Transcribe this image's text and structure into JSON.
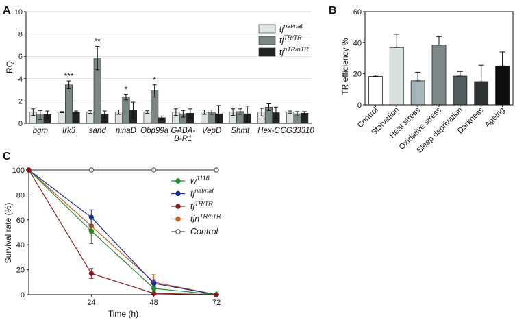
{
  "colors": {
    "nat": "#dde3e0",
    "tr": "#7b8785",
    "ntr": "#222424",
    "line_w1118": "#1f8a2e",
    "line_nat": "#1b2a9c",
    "line_tr": "#8b1a1a",
    "line_ntr": "#c4581e",
    "line_control": "#555555"
  },
  "chart_data": [
    {
      "id": "A",
      "panel_label": "A",
      "type": "bar",
      "ylabel": "RQ",
      "xlabel": "",
      "ylim": [
        0,
        10
      ],
      "yticks": [
        0,
        2,
        4,
        6,
        8,
        10
      ],
      "categories": [
        "bgm",
        "Irk3",
        "sand",
        "ninaD",
        "Obp99a",
        "GABA-B-R1",
        "VepD",
        "Shmt",
        "Hex-C",
        "CG33310"
      ],
      "category_lines": [
        [
          "bgm"
        ],
        [
          "Irk3"
        ],
        [
          "sand"
        ],
        [
          "ninaD"
        ],
        [
          "Obp99a"
        ],
        [
          "GABA-",
          "B-R1"
        ],
        [
          "VepD"
        ],
        [
          "Shmt"
        ],
        [
          "Hex-C"
        ],
        [
          "CG33310"
        ]
      ],
      "series": [
        {
          "key": "nat",
          "name": "tj",
          "sup": "nat/nat",
          "values": [
            1.0,
            1.0,
            1.0,
            1.0,
            1.0,
            1.0,
            1.0,
            1.0,
            1.0,
            1.0
          ],
          "err": [
            0.3,
            0.05,
            0.12,
            0.2,
            0.12,
            0.3,
            0.2,
            0.3,
            0.35,
            0.1
          ]
        },
        {
          "key": "tr",
          "name": "tj",
          "sup": "TR/TR",
          "values": [
            0.75,
            3.45,
            5.85,
            2.35,
            2.9,
            0.85,
            1.0,
            1.05,
            1.45,
            0.85
          ],
          "err": [
            0.4,
            0.35,
            1.05,
            0.25,
            0.55,
            0.3,
            0.2,
            0.25,
            0.3,
            0.2
          ]
        },
        {
          "key": "ntr",
          "name": "tj",
          "sup": "nTR/nTR",
          "values": [
            0.8,
            1.0,
            0.8,
            1.2,
            0.5,
            0.9,
            0.85,
            0.85,
            0.95,
            0.9
          ],
          "err": [
            0.3,
            0.1,
            0.3,
            0.7,
            0.15,
            0.4,
            0.75,
            0.7,
            0.5,
            0.15
          ]
        }
      ],
      "significance": [
        {
          "category": "Irk3",
          "series": "tr",
          "label": "***"
        },
        {
          "category": "sand",
          "series": "tr",
          "label": "**"
        },
        {
          "category": "ninaD",
          "series": "tr",
          "label": "*"
        },
        {
          "category": "Obp99a",
          "series": "tr",
          "label": "*"
        }
      ],
      "legend_position": "top-right"
    },
    {
      "id": "B",
      "panel_label": "B",
      "type": "bar",
      "ylabel": "TR efficiency %",
      "xlabel": "",
      "ylim": [
        0,
        60
      ],
      "yticks": [
        0,
        20,
        40,
        60
      ],
      "categories": [
        "Control",
        "Starvation",
        "Heat stress",
        "Oxidative stress",
        "Sleep deprivation",
        "Darkness",
        "Ageing"
      ],
      "values": [
        18.3,
        37,
        15.5,
        38.5,
        18.5,
        15,
        25
      ],
      "err": [
        0.8,
        8.5,
        5.5,
        5.5,
        3,
        10.5,
        9
      ],
      "bar_colors": [
        "#ffffff",
        "#d7dfdc",
        "#a7b5bc",
        "#7b8a88",
        "#4f5b5c",
        "#2d3333",
        "#0c0e0e"
      ]
    },
    {
      "id": "C",
      "panel_label": "C",
      "type": "line",
      "ylabel": "Survival rate  (%)",
      "xlabel": "Time (h)",
      "xlim": [
        0,
        72
      ],
      "ylim": [
        0,
        100
      ],
      "x": [
        0,
        24,
        48,
        72
      ],
      "xtick_labels": [
        "24",
        "48",
        "72"
      ],
      "ytick_labels": [
        "0",
        "20",
        "40",
        "60",
        "80",
        "100"
      ],
      "series": [
        {
          "key": "line_w1118",
          "name": "w",
          "sup": "1118",
          "values": [
            100,
            51,
            5,
            0
          ],
          "err": [
            0,
            10,
            2,
            3
          ],
          "marker": "filled"
        },
        {
          "key": "line_nat",
          "name": "tj",
          "sup": "nat/nat",
          "values": [
            100,
            62,
            9,
            0
          ],
          "err": [
            0,
            6,
            3,
            0
          ],
          "marker": "filled"
        },
        {
          "key": "line_tr",
          "name": "tj",
          "sup": "TR/TR",
          "values": [
            100,
            17,
            1,
            0
          ],
          "err": [
            0,
            4,
            0,
            0
          ],
          "marker": "filled"
        },
        {
          "key": "line_ntr",
          "name": "tjn",
          "sup": "TR/nTR",
          "values": [
            100,
            55,
            10,
            0
          ],
          "err": [
            0,
            6,
            6,
            0
          ],
          "marker": "filled"
        },
        {
          "key": "line_control",
          "name": "Control",
          "sup": "",
          "values": [
            100,
            100,
            100,
            100
          ],
          "err": [
            0,
            0,
            0,
            0
          ],
          "marker": "open"
        }
      ],
      "legend_position": "top-right"
    }
  ]
}
